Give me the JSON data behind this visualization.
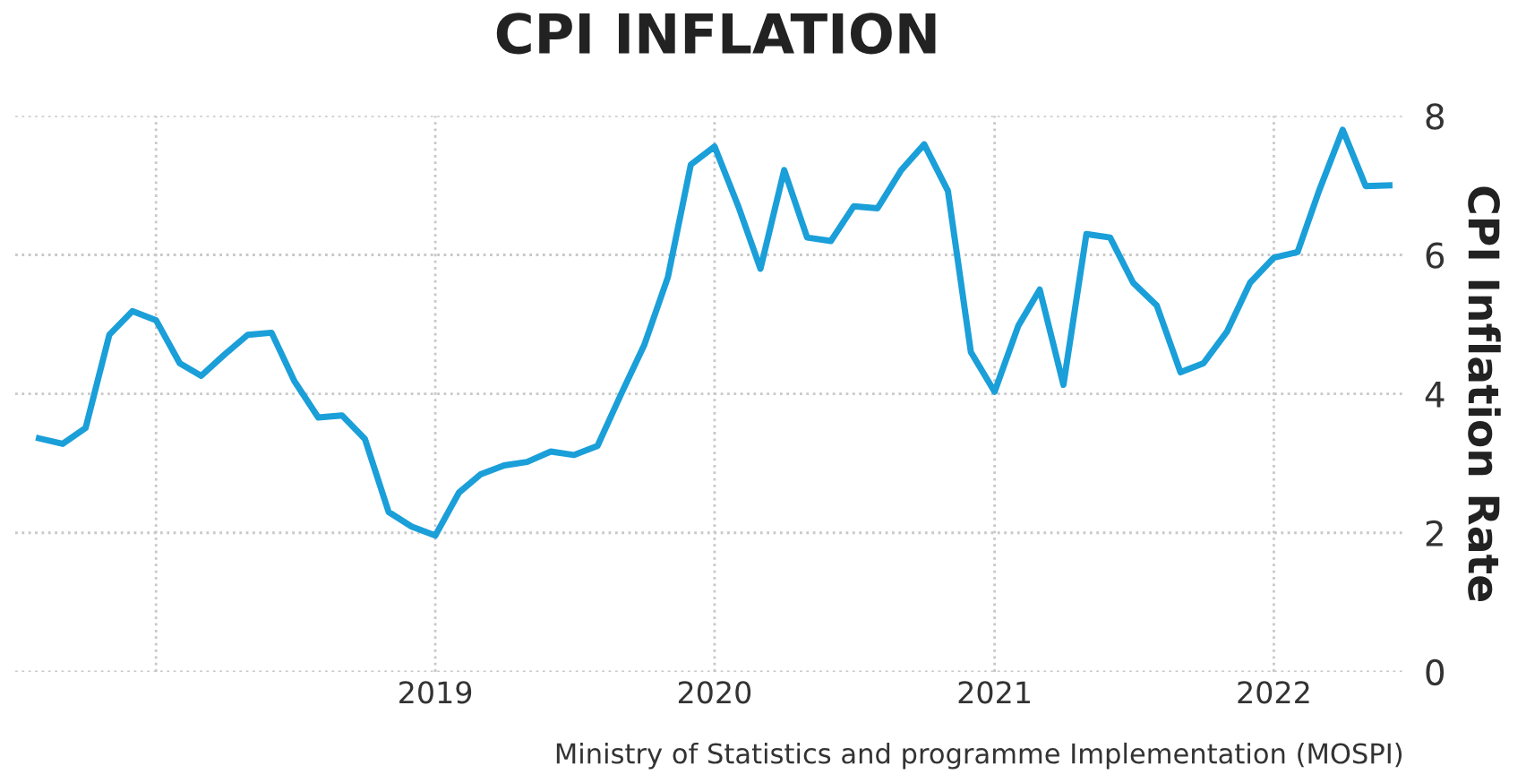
{
  "chart_data": {
    "type": "line",
    "title": "CPI INFLATION",
    "ylabel": "CPI Inflation Rate",
    "annotations": [
      "Ministry of Statistics and programme Implementation (MOSPI)"
    ],
    "x": [
      "2017-08",
      "2017-09",
      "2017-10",
      "2017-11",
      "2017-12",
      "2018-01",
      "2018-02",
      "2018-03",
      "2018-04",
      "2018-05",
      "2018-06",
      "2018-07",
      "2018-08",
      "2018-09",
      "2018-10",
      "2018-11",
      "2018-12",
      "2019-01",
      "2019-02",
      "2019-03",
      "2019-04",
      "2019-05",
      "2019-06",
      "2019-07",
      "2019-08",
      "2019-09",
      "2019-10",
      "2019-11",
      "2019-12",
      "2020-01",
      "2020-02",
      "2020-03",
      "2020-04",
      "2020-05",
      "2020-06",
      "2020-07",
      "2020-08",
      "2020-09",
      "2020-10",
      "2020-11",
      "2020-12",
      "2021-01",
      "2021-02",
      "2021-03",
      "2021-04",
      "2021-05",
      "2021-06",
      "2021-07",
      "2021-08",
      "2021-09",
      "2021-10",
      "2021-11",
      "2021-12",
      "2022-01",
      "2022-02",
      "2022-03",
      "2022-04",
      "2022-05",
      "2022-06"
    ],
    "series": [
      {
        "color": "#1a9fd9",
        "values": [
          3.36,
          3.28,
          3.51,
          4.85,
          5.19,
          5.06,
          4.44,
          4.26,
          4.57,
          4.85,
          4.88,
          4.18,
          3.66,
          3.69,
          3.35,
          2.3,
          2.09,
          1.96,
          2.58,
          2.84,
          2.97,
          3.02,
          3.17,
          3.12,
          3.25,
          4.0,
          4.7,
          5.68,
          7.3,
          7.56,
          6.7,
          5.8,
          7.22,
          6.25,
          6.2,
          6.7,
          6.67,
          7.22,
          7.59,
          6.92,
          4.6,
          4.03,
          4.98,
          5.5,
          4.13,
          6.3,
          6.25,
          5.6,
          5.27,
          4.31,
          4.44,
          4.9,
          5.6,
          5.96,
          6.04,
          6.92,
          7.8,
          6.99,
          7.0
        ]
      }
    ],
    "xlim": [
      "2017-07-01",
      "2022-06-20"
    ],
    "xticks": [
      {
        "value": "2018-01-01",
        "label": null
      },
      {
        "value": "2019-01-01",
        "label": "2019"
      },
      {
        "value": "2020-01-01",
        "label": "2020"
      },
      {
        "value": "2021-01-01",
        "label": "2021"
      },
      {
        "value": "2022-01-01",
        "label": "2022"
      }
    ],
    "ylim": [
      0,
      8
    ],
    "yticks": [
      0,
      2,
      4,
      6,
      8
    ],
    "grid": true,
    "marker": "none",
    "line_style": "solid"
  }
}
